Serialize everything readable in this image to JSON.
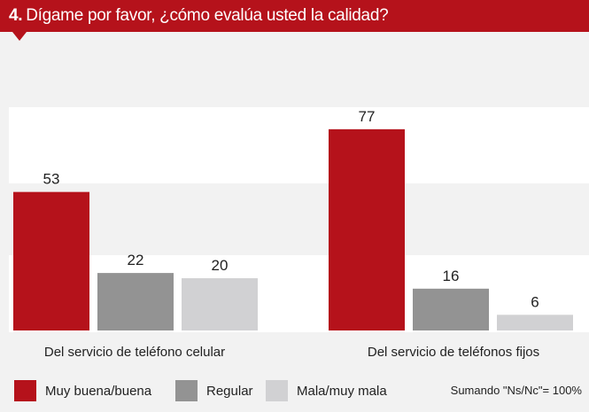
{
  "header": {
    "number": "4.",
    "question": "Dígame por favor, ¿cómo evalúa usted la calidad?"
  },
  "colors": {
    "header_bg": "#b5121b",
    "muy_buena": "#b5121b",
    "regular": "#939393",
    "mala": "#d1d1d3",
    "background": "#f2f2f2",
    "band": "#ffffff"
  },
  "legend": {
    "items": [
      {
        "label": "Muy buena/buena",
        "color": "#b5121b"
      },
      {
        "label": "Regular",
        "color": "#939393"
      },
      {
        "label": "Mala/muy mala",
        "color": "#d1d1d3"
      }
    ],
    "note": "Sumando \"Ns/Nc\"= 100%"
  },
  "chart_data": {
    "type": "bar",
    "categories": [
      "Del servicio de teléfono celular",
      "Del servicio de teléfonos fijos"
    ],
    "series": [
      {
        "name": "Muy buena/buena",
        "values": [
          53,
          77
        ],
        "color": "#b5121b"
      },
      {
        "name": "Regular",
        "values": [
          22,
          16
        ],
        "color": "#939393"
      },
      {
        "name": "Mala/muy mala",
        "values": [
          20,
          6
        ],
        "color": "#d1d1d3"
      }
    ],
    "title": "",
    "xlabel": "",
    "ylabel": "",
    "ylim": [
      0,
      100
    ],
    "grid": false,
    "legend_position": "bottom"
  }
}
